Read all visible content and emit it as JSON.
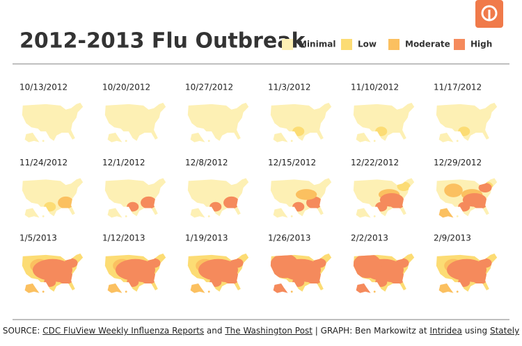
{
  "title": "2012-2013 Flu Outbreak",
  "legend": [
    {
      "label": "Minimal",
      "color": "#fdf0b4"
    },
    {
      "label": "Low",
      "color": "#fcdc74"
    },
    {
      "label": "Moderate",
      "color": "#fbc060"
    },
    {
      "label": "High",
      "color": "#f58a5c"
    }
  ],
  "maps": [
    "10/13/2012",
    "10/20/2012",
    "10/27/2012",
    "11/3/2012",
    "11/10/2012",
    "11/17/2012",
    "11/24/2012",
    "12/1/2012",
    "12/8/2012",
    "12/15/2012",
    "12/22/2012",
    "12/29/2012",
    "1/5/2013",
    "1/12/2013",
    "1/19/2013",
    "1/26/2013",
    "2/2/2013",
    "2/9/2013"
  ],
  "footer": {
    "parts": [
      "SOURCE: ",
      "CDC FluView Weekly Influenza Reports",
      " and ",
      "The Washington Post",
      " | GRAPH: Ben Markowitz at ",
      "Intridea",
      " using ",
      "Stately"
    ]
  }
}
